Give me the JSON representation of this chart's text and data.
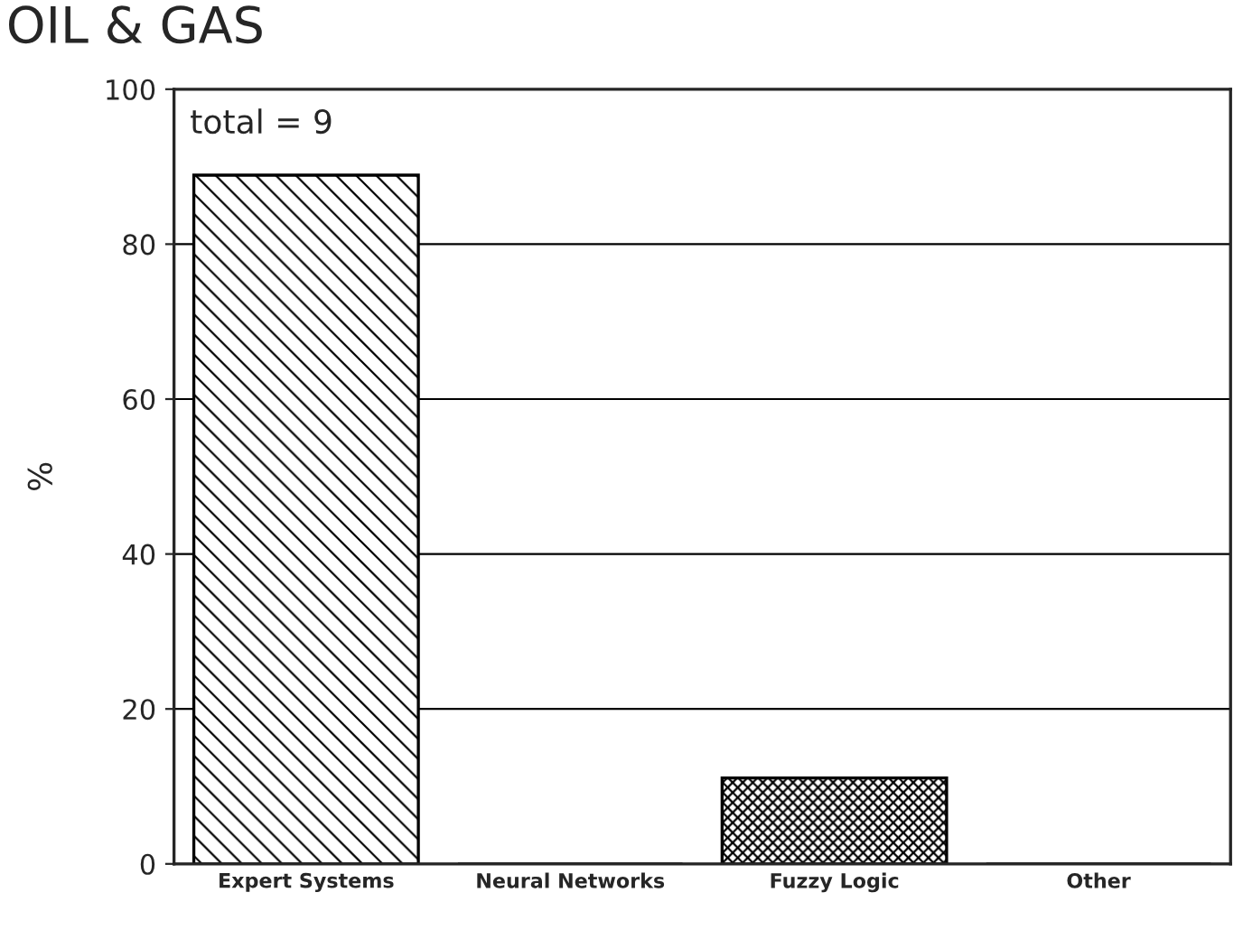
{
  "chart_data": {
    "type": "bar",
    "title": "OIL & GAS",
    "ylabel": "%",
    "categories": [
      "Expert Systems",
      "Neural Networks",
      "Fuzzy Logic",
      "Other"
    ],
    "values": [
      88.9,
      0,
      11.1,
      0
    ],
    "ylim": [
      0,
      100
    ],
    "yticks": [
      0,
      20,
      40,
      60,
      80,
      100
    ],
    "grid": "y",
    "annotations": [
      "total = 9"
    ]
  }
}
